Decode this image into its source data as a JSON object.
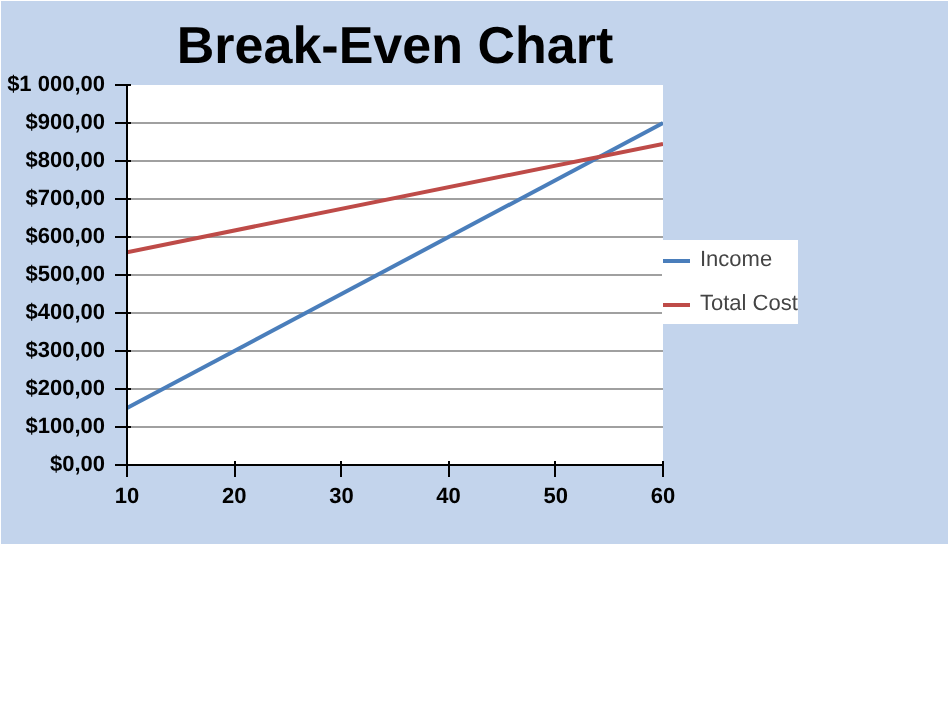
{
  "chart_data": {
    "type": "line",
    "title": "Break-Even Chart",
    "x": [
      10,
      60
    ],
    "series": [
      {
        "name": "Income",
        "color": "#4a7ebb",
        "values": [
          150,
          900
        ]
      },
      {
        "name": "Total Cost",
        "color": "#be4b48",
        "values": [
          560,
          845
        ]
      }
    ],
    "xlim": [
      10,
      60
    ],
    "xticks": [
      10,
      20,
      30,
      40,
      50,
      60
    ],
    "ylim": [
      0,
      1000
    ],
    "yticks": [
      {
        "value": 0,
        "label": "$0,00"
      },
      {
        "value": 100,
        "label": "$100,00"
      },
      {
        "value": 200,
        "label": "$200,00"
      },
      {
        "value": 300,
        "label": "$300,00"
      },
      {
        "value": 400,
        "label": "$400,00"
      },
      {
        "value": 500,
        "label": "$500,00"
      },
      {
        "value": 600,
        "label": "$600,00"
      },
      {
        "value": 700,
        "label": "$700,00"
      },
      {
        "value": 800,
        "label": "$800,00"
      },
      {
        "value": 900,
        "label": "$900,00"
      },
      {
        "value": 1000,
        "label": "$1 000,00"
      }
    ],
    "grid": "y",
    "legend": "right",
    "marker": "none",
    "line_style": "solid"
  }
}
